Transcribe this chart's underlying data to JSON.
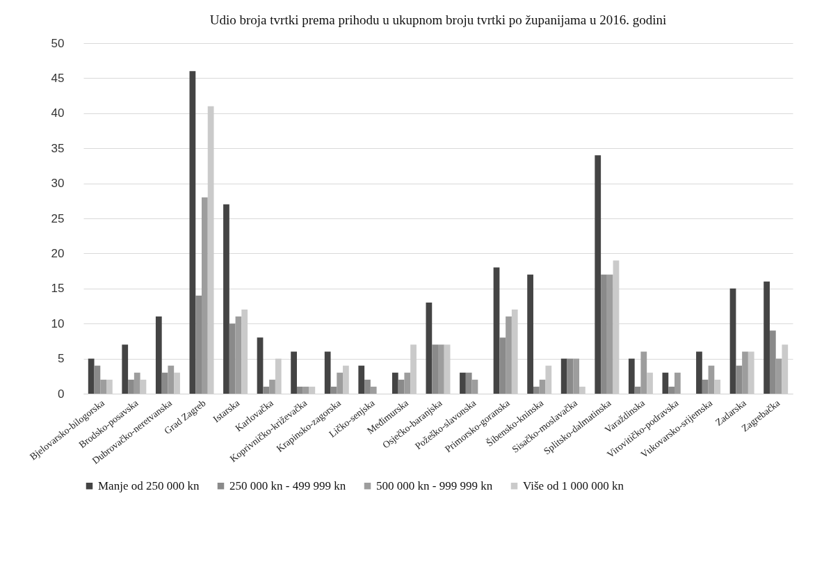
{
  "chart_data": {
    "type": "bar",
    "title": "Udio broja tvrtki prema prihodu u ukupnom broju tvrtki po županijama u 2016. godini",
    "categories": [
      "Bjelovarsko-bilogorska",
      "Brodsko-posavska",
      "Dubrovačko-neretvanska",
      "Grad Zagreb",
      "Istarska",
      "Karlovačka",
      "Koprivničko-križevačka",
      "Krapinsko-zagorska",
      "Ličko-senjska",
      "Međimurska",
      "Osječko-baranjska",
      "Požeško-slavonska",
      "Primorsko-goranska",
      "Šibensko-kninska",
      "Sisačko-moslavačka",
      "Splitsko-dalmatinska",
      "Varaždinska",
      "Virovitičko-podravska",
      "Vukovarsko-srijemska",
      "Zadarska",
      "Zagrebačka"
    ],
    "series": [
      {
        "name": "Manje od 250 000 kn",
        "color": "#444444",
        "values": [
          5,
          7,
          11,
          46,
          27,
          8,
          6,
          6,
          4,
          3,
          13,
          3,
          18,
          17,
          5,
          34,
          5,
          3,
          6,
          15,
          16
        ]
      },
      {
        "name": "250 000 kn - 499 999 kn",
        "color": "#8a8a8a",
        "values": [
          4,
          2,
          3,
          14,
          10,
          1,
          1,
          1,
          2,
          2,
          7,
          3,
          8,
          1,
          5,
          17,
          1,
          1,
          2,
          4,
          9
        ]
      },
      {
        "name": "500 000 kn - 999 999 kn",
        "color": "#9d9d9d",
        "values": [
          2,
          3,
          4,
          28,
          11,
          2,
          1,
          3,
          1,
          3,
          7,
          2,
          11,
          2,
          5,
          17,
          6,
          3,
          4,
          6,
          5
        ]
      },
      {
        "name": "Više od 1 000 000 kn",
        "color": "#cacaca",
        "values": [
          2,
          2,
          3,
          41,
          12,
          5,
          1,
          4,
          0,
          7,
          7,
          0,
          12,
          4,
          1,
          19,
          3,
          0,
          2,
          6,
          7
        ]
      }
    ],
    "ylim": [
      0,
      50
    ],
    "yticks": [
      0,
      5,
      10,
      15,
      20,
      25,
      30,
      35,
      40,
      45,
      50
    ],
    "grid": "y",
    "legend": "bottom"
  }
}
